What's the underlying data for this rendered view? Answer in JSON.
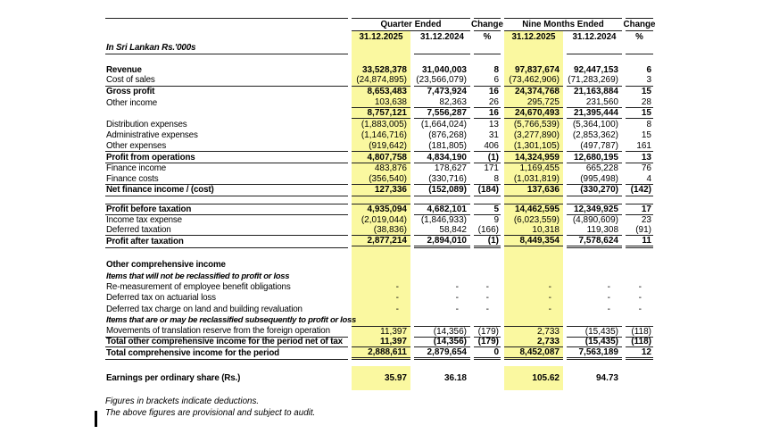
{
  "colors": {
    "highlight": "#FAF8A0",
    "border": "#1f1f1f",
    "text": "#000000"
  },
  "header": {
    "quarter_group": "Quarter Ended",
    "nine_months_group": "Nine Months Ended",
    "change_label": "Change",
    "percent_label": "%",
    "quarter_cols": [
      "31.12.2025",
      "31.12.2024"
    ],
    "nine_months_cols": [
      "31.12.2025",
      "31.12.2024"
    ],
    "currency_note": "In Sri Lankan Rs.'000s"
  },
  "table": {
    "rows": [
      {
        "spacer": true,
        "h": 13
      },
      {
        "label": "Revenue",
        "bold": true,
        "values": [
          "33,528,378",
          "31,040,003",
          "8",
          "97,837,674",
          "92,447,153",
          "6"
        ]
      },
      {
        "label": "Cost of sales",
        "values": [
          "(24,874,895)",
          "(23,566,079)",
          "6",
          "(73,462,906)",
          "(71,283,269)",
          "3"
        ],
        "border_bottom": "full"
      },
      {
        "label": "Gross profit",
        "bold": true,
        "values": [
          "8,653,483",
          "7,473,924",
          "16",
          "24,374,768",
          "21,163,884",
          "15"
        ]
      },
      {
        "label": "Other income",
        "values": [
          "103,638",
          "82,363",
          "26",
          "295,725",
          "231,560",
          "28"
        ],
        "border_bottom": "num"
      },
      {
        "label": "",
        "bold": true,
        "values": [
          "8,757,121",
          "7,556,287",
          "16",
          "24,670,493",
          "21,395,444",
          "15"
        ],
        "border_bottom": "num"
      },
      {
        "label": "Distribution expenses",
        "values": [
          "(1,883,005)",
          "(1,664,024)",
          "13",
          "(5,766,539)",
          "(5,364,100)",
          "8"
        ]
      },
      {
        "label": "Administrative expenses",
        "values": [
          "(1,146,716)",
          "(876,268)",
          "31",
          "(3,277,890)",
          "(2,853,362)",
          "15"
        ]
      },
      {
        "label": "Other expenses",
        "values": [
          "(919,642)",
          "(181,805)",
          "406",
          "(1,301,105)",
          "(497,787)",
          "161"
        ],
        "border_bottom": "full"
      },
      {
        "label": "Profit from operations",
        "bold": true,
        "values": [
          "4,807,758",
          "4,834,190",
          "(1)",
          "14,324,959",
          "12,680,195",
          "13"
        ],
        "border_bottom": "full"
      },
      {
        "label": "Finance income",
        "values": [
          "483,876",
          "178,627",
          "171",
          "1,169,455",
          "665,228",
          "76"
        ]
      },
      {
        "label": "Finance costs",
        "values": [
          "(356,540)",
          "(330,716)",
          "8",
          "(1,031,819)",
          "(995,498)",
          "4"
        ],
        "border_bottom": "full"
      },
      {
        "label": "Net finance income / (cost)",
        "bold": true,
        "values": [
          "127,336",
          "(152,089)",
          "(184)",
          "137,636",
          "(330,270)",
          "(142)"
        ],
        "border_bottom": "full"
      },
      {
        "spacer": true,
        "h": 8
      },
      {
        "label": "Profit before taxation",
        "bold": true,
        "values": [
          "4,935,094",
          "4,682,101",
          "5",
          "14,462,595",
          "12,349,925",
          "17"
        ],
        "border_top": "full",
        "border_bottom": "full"
      },
      {
        "label": "Income tax expense",
        "values": [
          "(2,019,044)",
          "(1,846,933)",
          "9",
          "(6,023,559)",
          "(4,890,609)",
          "23"
        ]
      },
      {
        "label": "Deferred taxation",
        "values": [
          "(38,836)",
          "58,842",
          "(166)",
          "10,318",
          "119,308",
          "(91)"
        ],
        "border_bottom": "full"
      },
      {
        "label": "Profit after taxation",
        "bold": true,
        "values": [
          "2,877,214",
          "2,894,010",
          "(1)",
          "8,449,354",
          "7,578,624",
          "11"
        ],
        "border_bottom": "double"
      },
      {
        "spacer": true,
        "h": 14
      },
      {
        "label": "Other comprehensive income",
        "bold": true
      },
      {
        "label": "Items that will not be reclassified to profit or loss",
        "italic": true
      },
      {
        "label": "Re-measurement of employee benefit obligations",
        "values": [
          "-",
          "-",
          "-",
          "-",
          "-",
          "-"
        ]
      },
      {
        "label": "Deferred tax on actuarial loss",
        "values": [
          "-",
          "-",
          "-",
          "-",
          "-",
          "-"
        ]
      },
      {
        "label": "Deferred tax charge on land and building revaluation",
        "values": [
          "-",
          "-",
          "-",
          "-",
          "-",
          "-"
        ]
      },
      {
        "label": "Items that are or may be reclassified subsequently to profit or loss",
        "italic": true
      },
      {
        "label": "Movements of translation reserve from the foreign operation",
        "values": [
          "11,397",
          "(14,356)",
          "(179)",
          "2,733",
          "(15,435)",
          "(118)"
        ],
        "border_top": "num",
        "border_bottom": "full"
      },
      {
        "label": "Total other comprehensive income for the period net of tax",
        "bold": true,
        "values": [
          "11,397",
          "(14,356)",
          "(179)",
          "2,733",
          "(15,435)",
          "(118)"
        ],
        "border_bottom": "full"
      },
      {
        "label": "Total comprehensive income for the period",
        "bold": true,
        "values": [
          "2,888,611",
          "2,879,654",
          "0",
          "8,452,087",
          "7,563,189",
          "12"
        ],
        "border_bottom": "double"
      },
      {
        "spacer": true,
        "h": 9,
        "yellow": false
      },
      {
        "label": "Earnings per ordinary share (Rs.)",
        "bold": true,
        "h": 27,
        "values": [
          "35.97",
          "36.18",
          "",
          "105.62",
          "94.73",
          ""
        ]
      }
    ]
  },
  "footnotes": [
    "Figures in brackets indicate deductions.",
    "The above figures are provisional and subject to audit."
  ]
}
